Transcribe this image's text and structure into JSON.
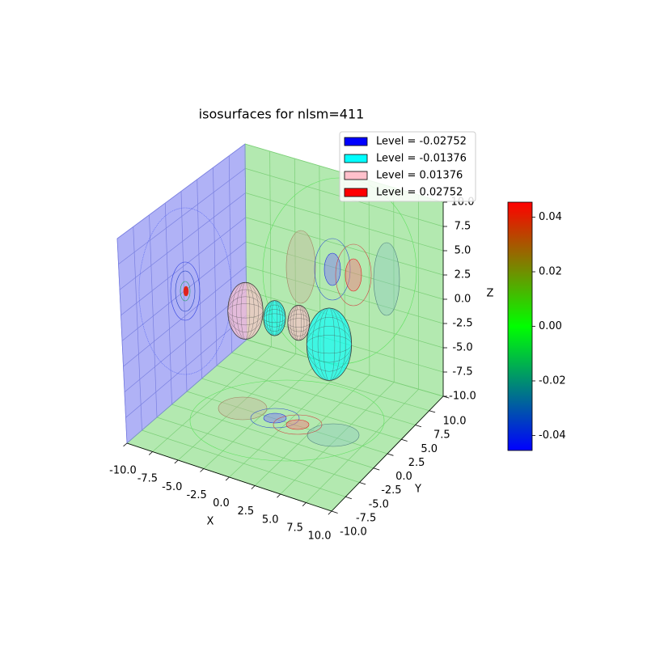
{
  "chart_data": {
    "type": "isosurface",
    "title": "isosurfaces for nlsm=411",
    "xlabel": "X",
    "ylabel": "Y",
    "zlabel": "Z",
    "xlim": [
      -10,
      10
    ],
    "ylim": [
      -10,
      10
    ],
    "zlim": [
      -10,
      10
    ],
    "xticks": [
      {
        "value": -10,
        "label": "-10.0"
      },
      -7.5,
      {
        "value": -5,
        "label": "-5.0"
      },
      -2.5,
      {
        "value": 0,
        "label": "0.0"
      },
      2.5,
      {
        "value": 5,
        "label": "5.0"
      },
      7.5,
      {
        "value": 10,
        "label": "10.0"
      }
    ],
    "yticks": [
      {
        "value": -10,
        "label": "-10.0"
      },
      -7.5,
      {
        "value": -5,
        "label": "-5.0"
      },
      -2.5,
      {
        "value": 0,
        "label": "0.0"
      },
      2.5,
      {
        "value": 5,
        "label": "5.0"
      },
      7.5,
      {
        "value": 10,
        "label": "10.0"
      }
    ],
    "zticks": [
      {
        "value": -10,
        "label": "-10.0"
      },
      -7.5,
      {
        "value": -5,
        "label": "-5.0"
      },
      -2.5,
      {
        "value": 0,
        "label": "0.0"
      },
      2.5,
      {
        "value": 5,
        "label": "5.0"
      },
      7.5,
      {
        "value": 10,
        "label": "10.0"
      }
    ],
    "grid": true,
    "legend": "upper right",
    "series": [
      {
        "name": "Level = -0.02752",
        "color": "#0000ff",
        "x": [],
        "y": [],
        "z": [],
        "size": []
      },
      {
        "name": "Level = -0.01376",
        "color": "#00ffff",
        "x": [
          -1,
          4.4
        ],
        "y": [
          0,
          0
        ],
        "z": [
          0.2,
          -0.7
        ],
        "size": [
          1.8,
          3.7
        ]
      },
      {
        "name": "Level = 0.01376",
        "color": "#ffc0cb",
        "x": [
          -3.9,
          1.4
        ],
        "y": [
          0,
          0
        ],
        "z": [
          0,
          0.5
        ],
        "size": [
          2.9,
          1.8
        ]
      },
      {
        "name": "Level = 0.02752",
        "color": "#ff0000",
        "x": [],
        "y": [],
        "z": [],
        "size": []
      }
    ],
    "colorbar": {
      "clim": [
        -0.0455,
        0.0455
      ],
      "colormap": [
        "#0000ff",
        "#00ff00",
        "#ff0000"
      ],
      "ticks": [
        -0.04,
        -0.02,
        {
          "value": 0,
          "label": "0.00"
        },
        0.02,
        0.04
      ]
    }
  }
}
